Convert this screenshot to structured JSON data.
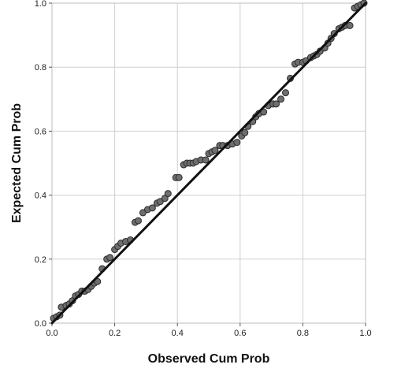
{
  "chart_data": {
    "type": "scatter",
    "title": "",
    "xlabel": "Observed Cum Prob",
    "ylabel": "Expected Cum Prob",
    "xlim": [
      0.0,
      1.0
    ],
    "ylim": [
      0.0,
      1.0
    ],
    "x_ticks": [
      "0.0",
      "0.2",
      "0.4",
      "0.6",
      "0.8",
      "1.0"
    ],
    "y_ticks": [
      "0.0",
      "0.2",
      "0.4",
      "0.6",
      "0.8",
      "1.0"
    ],
    "grid": true,
    "reference_line": {
      "from": [
        0.0,
        0.0
      ],
      "to": [
        1.0,
        1.0
      ],
      "color": "#111111"
    },
    "point_color": "#6e6e6e",
    "points": [
      [
        0.005,
        0.015
      ],
      [
        0.015,
        0.02
      ],
      [
        0.025,
        0.025
      ],
      [
        0.03,
        0.05
      ],
      [
        0.045,
        0.055
      ],
      [
        0.055,
        0.06
      ],
      [
        0.065,
        0.07
      ],
      [
        0.075,
        0.085
      ],
      [
        0.085,
        0.09
      ],
      [
        0.095,
        0.1
      ],
      [
        0.105,
        0.1
      ],
      [
        0.115,
        0.105
      ],
      [
        0.125,
        0.115
      ],
      [
        0.135,
        0.125
      ],
      [
        0.145,
        0.13
      ],
      [
        0.16,
        0.17
      ],
      [
        0.175,
        0.2
      ],
      [
        0.185,
        0.205
      ],
      [
        0.2,
        0.23
      ],
      [
        0.21,
        0.24
      ],
      [
        0.22,
        0.25
      ],
      [
        0.235,
        0.255
      ],
      [
        0.25,
        0.26
      ],
      [
        0.265,
        0.315
      ],
      [
        0.275,
        0.32
      ],
      [
        0.29,
        0.345
      ],
      [
        0.305,
        0.355
      ],
      [
        0.32,
        0.36
      ],
      [
        0.335,
        0.375
      ],
      [
        0.345,
        0.38
      ],
      [
        0.36,
        0.39
      ],
      [
        0.37,
        0.405
      ],
      [
        0.395,
        0.455
      ],
      [
        0.405,
        0.455
      ],
      [
        0.42,
        0.495
      ],
      [
        0.43,
        0.5
      ],
      [
        0.44,
        0.5
      ],
      [
        0.45,
        0.5
      ],
      [
        0.46,
        0.505
      ],
      [
        0.475,
        0.51
      ],
      [
        0.49,
        0.51
      ],
      [
        0.5,
        0.53
      ],
      [
        0.51,
        0.535
      ],
      [
        0.52,
        0.54
      ],
      [
        0.535,
        0.555
      ],
      [
        0.545,
        0.555
      ],
      [
        0.56,
        0.555
      ],
      [
        0.575,
        0.56
      ],
      [
        0.59,
        0.565
      ],
      [
        0.605,
        0.585
      ],
      [
        0.615,
        0.595
      ],
      [
        0.625,
        0.615
      ],
      [
        0.64,
        0.63
      ],
      [
        0.65,
        0.645
      ],
      [
        0.66,
        0.655
      ],
      [
        0.675,
        0.66
      ],
      [
        0.69,
        0.68
      ],
      [
        0.705,
        0.685
      ],
      [
        0.715,
        0.685
      ],
      [
        0.73,
        0.7
      ],
      [
        0.745,
        0.72
      ],
      [
        0.76,
        0.765
      ],
      [
        0.775,
        0.81
      ],
      [
        0.785,
        0.815
      ],
      [
        0.8,
        0.815
      ],
      [
        0.81,
        0.82
      ],
      [
        0.825,
        0.83
      ],
      [
        0.835,
        0.835
      ],
      [
        0.845,
        0.84
      ],
      [
        0.855,
        0.85
      ],
      [
        0.87,
        0.86
      ],
      [
        0.88,
        0.875
      ],
      [
        0.89,
        0.89
      ],
      [
        0.9,
        0.905
      ],
      [
        0.915,
        0.92
      ],
      [
        0.925,
        0.925
      ],
      [
        0.935,
        0.93
      ],
      [
        0.95,
        0.93
      ],
      [
        0.965,
        0.985
      ],
      [
        0.975,
        0.99
      ],
      [
        0.985,
        0.995
      ],
      [
        0.995,
        1.0
      ]
    ]
  }
}
